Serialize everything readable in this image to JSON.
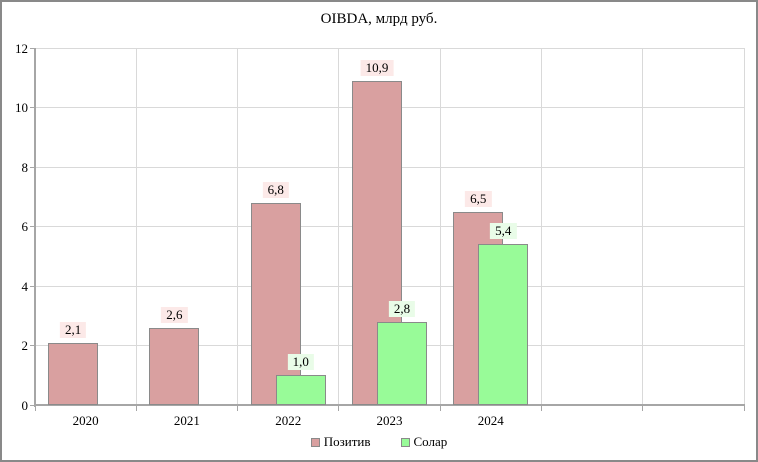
{
  "window": {
    "background": "#ffffff",
    "border_color": "#898989"
  },
  "chart_data": {
    "type": "bar",
    "title": "OIBDA, млрд руб.",
    "categories": [
      "2020",
      "2021",
      "2022",
      "2023",
      "2024"
    ],
    "total_slots": 7,
    "series": [
      {
        "name": "Позитив",
        "values": [
          2.1,
          2.6,
          6.8,
          10.9,
          6.5
        ],
        "labels": [
          "2,1",
          "2,6",
          "6,8",
          "10,9",
          "6,5"
        ],
        "color": "#d9a0a0",
        "border_color": "#8a8a8a",
        "label_bg": "#fce9e8"
      },
      {
        "name": "Солар",
        "values": [
          null,
          null,
          1.0,
          2.8,
          5.4
        ],
        "labels": [
          null,
          null,
          "1,0",
          "2,8",
          "5,4"
        ],
        "color": "#98fb98",
        "border_color": "#8a8a8a",
        "label_bg": "#e9fce8"
      }
    ],
    "ylim": [
      0,
      12
    ],
    "yticks": [
      0,
      2,
      4,
      6,
      8,
      10,
      12
    ],
    "grid": true,
    "grid_color": "#d9d9d9",
    "axis_color": "#a6a6a6",
    "legend_position": "bottom",
    "bar_style": "overlapped"
  }
}
